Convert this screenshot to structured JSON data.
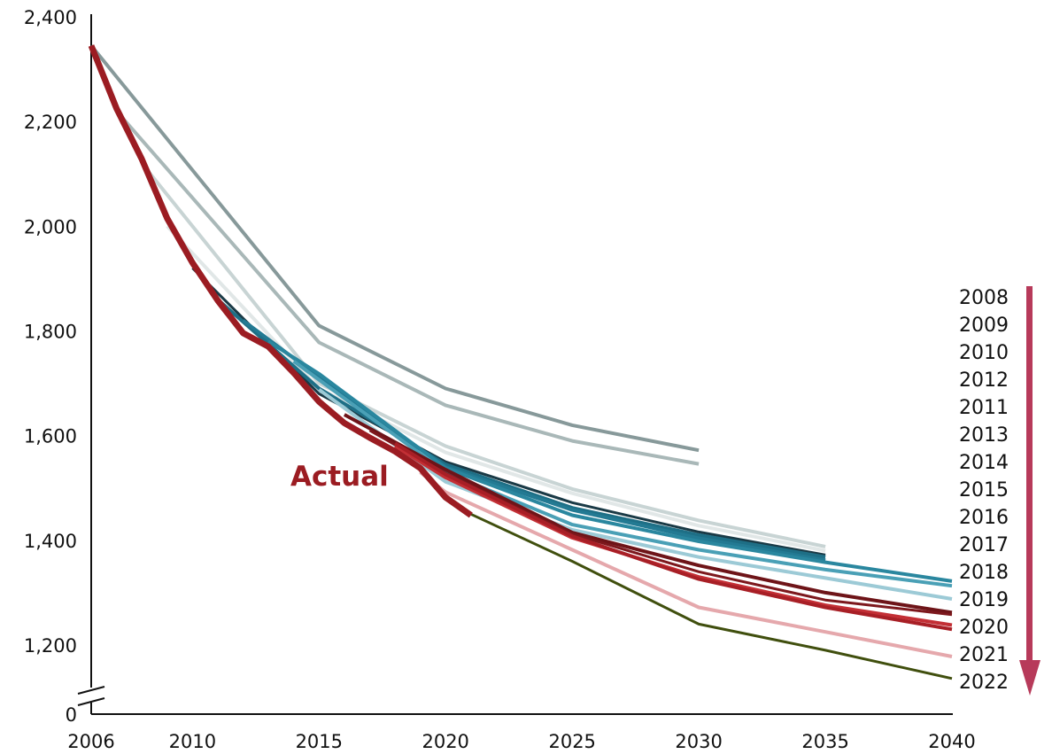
{
  "chart_data": {
    "type": "line",
    "title": "",
    "xlabel": "",
    "ylabel": "",
    "xlim": [
      2006,
      2040
    ],
    "ylim": [
      1100,
      2400
    ],
    "axis_break": true,
    "grid": false,
    "x_ticks": [
      "2006",
      "2010",
      "2015",
      "2020",
      "2025",
      "2030",
      "2035",
      "2040"
    ],
    "x_tick_values": [
      2006,
      2010,
      2015,
      2020,
      2025,
      2030,
      2035,
      2040
    ],
    "y_ticks": [
      "2,400",
      "2,200",
      "2,000",
      "1,800",
      "1,600",
      "1,400",
      "1,200"
    ],
    "y_tick_values": [
      2400,
      2200,
      2000,
      1800,
      1600,
      1400,
      1200
    ],
    "y_zero_label": "0",
    "legend": [
      "2008",
      "2009",
      "2010",
      "2012",
      "2011",
      "2013",
      "2014",
      "2015",
      "2016",
      "2017",
      "2018",
      "2019",
      "2020",
      "2021",
      "2022"
    ],
    "legend_arrow_color": "#b73a5a",
    "annotations": [
      {
        "text": "Actual",
        "color": "#9b1c22"
      }
    ],
    "series": [
      {
        "key": "2008",
        "color": "#87999a",
        "width": 4,
        "x": [
          2006,
          2015,
          2020,
          2025,
          2030
        ],
        "y": [
          2345,
          1810,
          1690,
          1620,
          1572
        ]
      },
      {
        "key": "2009",
        "color": "#a9b8b8",
        "width": 4,
        "x": [
          2007,
          2015,
          2020,
          2025,
          2030
        ],
        "y": [
          2220,
          1778,
          1658,
          1590,
          1546
        ]
      },
      {
        "key": "2010",
        "color": "#c8d4d4",
        "width": 4,
        "x": [
          2008,
          2015,
          2020,
          2025,
          2030,
          2035
        ],
        "y": [
          2120,
          1700,
          1580,
          1498,
          1438,
          1388
        ]
      },
      {
        "key": "2011",
        "color": "#e1e7e7",
        "width": 4,
        "x": [
          2009,
          2015,
          2020,
          2025,
          2030,
          2035
        ],
        "y": [
          2000,
          1690,
          1568,
          1490,
          1428,
          1380
        ]
      },
      {
        "key": "2012",
        "color": "#1a3a46",
        "width": 3,
        "x": [
          2010,
          2015,
          2020,
          2025,
          2030,
          2035
        ],
        "y": [
          1920,
          1680,
          1550,
          1472,
          1416,
          1372
        ]
      },
      {
        "key": "2013",
        "color": "#1e6f86",
        "width": 4,
        "x": [
          2011,
          2015,
          2020,
          2025,
          2030,
          2035
        ],
        "y": [
          1860,
          1690,
          1545,
          1462,
          1410,
          1368
        ]
      },
      {
        "key": "2014",
        "color": "#237a93",
        "width": 4,
        "x": [
          2012,
          2015,
          2020,
          2025,
          2030,
          2035
        ],
        "y": [
          1820,
          1712,
          1540,
          1458,
          1404,
          1362
        ]
      },
      {
        "key": "2015",
        "color": "#2a879f",
        "width": 4,
        "x": [
          2013,
          2015,
          2020,
          2025,
          2030,
          2035,
          2040
        ],
        "y": [
          1780,
          1718,
          1538,
          1448,
          1398,
          1358,
          1322
        ]
      },
      {
        "key": "2016",
        "color": "#4aa0b6",
        "width": 4,
        "x": [
          2014,
          2020,
          2025,
          2030,
          2035,
          2040
        ],
        "y": [
          1742,
          1530,
          1430,
          1382,
          1344,
          1313
        ]
      },
      {
        "key": "2017",
        "color": "#9ccad6",
        "width": 4,
        "x": [
          2015,
          2020,
          2025,
          2030,
          2035,
          2040
        ],
        "y": [
          1688,
          1512,
          1420,
          1368,
          1328,
          1288
        ]
      },
      {
        "key": "2018",
        "color": "#6e1418",
        "width": 4,
        "x": [
          2016,
          2020,
          2025,
          2030,
          2035,
          2040
        ],
        "y": [
          1640,
          1535,
          1415,
          1352,
          1300,
          1262
        ]
      },
      {
        "key": "2019",
        "color": "#7d181d",
        "width": 3,
        "x": [
          2017,
          2020,
          2025,
          2030,
          2035,
          2040
        ],
        "y": [
          1610,
          1528,
          1412,
          1340,
          1286,
          1258
        ]
      },
      {
        "key": "2020",
        "color": "#c32f35",
        "width": 4,
        "x": [
          2018,
          2020,
          2025,
          2030,
          2035,
          2040
        ],
        "y": [
          1580,
          1520,
          1405,
          1330,
          1276,
          1238
        ]
      },
      {
        "key": "2020b",
        "color": "#a81f26",
        "width": 4,
        "x": [
          2018,
          2020,
          2025,
          2030,
          2035,
          2040
        ],
        "y": [
          1585,
          1526,
          1408,
          1326,
          1272,
          1230
        ]
      },
      {
        "key": "2021",
        "color": "#e5a8ac",
        "width": 4,
        "x": [
          2019,
          2020,
          2025,
          2030,
          2035,
          2040
        ],
        "y": [
          1530,
          1492,
          1382,
          1272,
          1225,
          1178
        ]
      },
      {
        "key": "2022",
        "color": "#404f0e",
        "width": 3,
        "x": [
          2021,
          2025,
          2030,
          2035,
          2040
        ],
        "y": [
          1450,
          1360,
          1240,
          1190,
          1136
        ]
      },
      {
        "key": "actual",
        "color": "#9b1c22",
        "width": 7,
        "x": [
          2006,
          2007,
          2008,
          2009,
          2010,
          2011,
          2012,
          2013,
          2014,
          2015,
          2016,
          2017,
          2018,
          2019,
          2020,
          2021
        ],
        "y": [
          2345,
          2225,
          2128,
          2015,
          1930,
          1858,
          1796,
          1770,
          1720,
          1665,
          1624,
          1596,
          1570,
          1538,
          1482,
          1448
        ]
      }
    ]
  }
}
